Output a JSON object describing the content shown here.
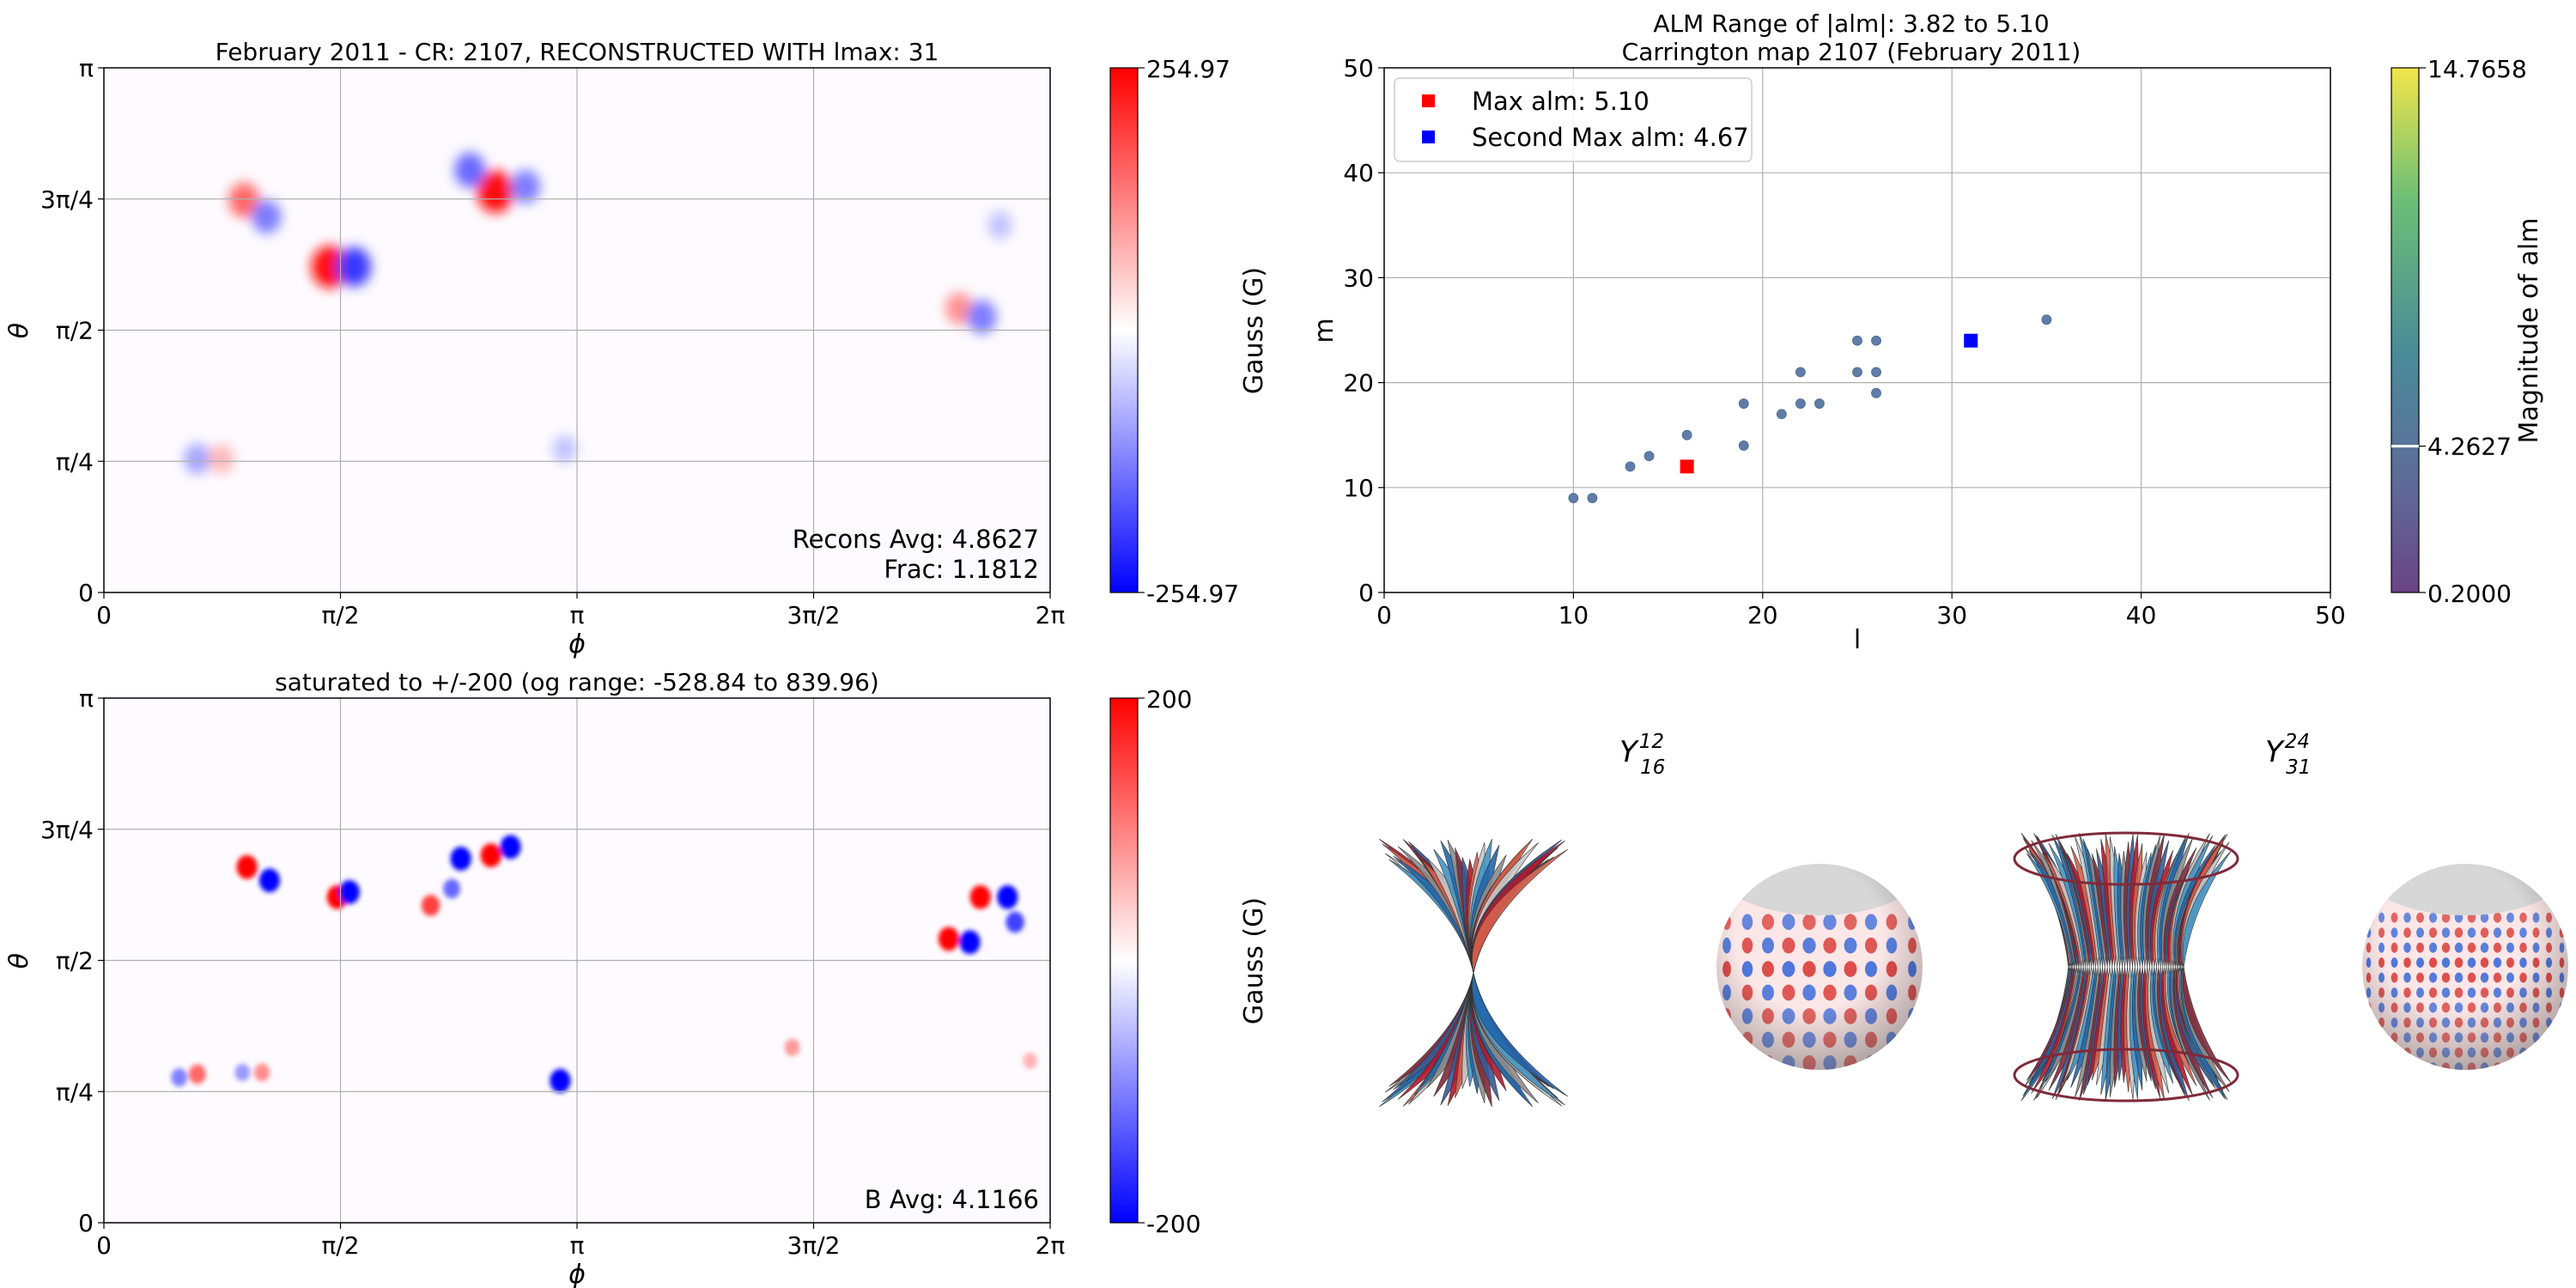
{
  "colors": {
    "red": "#ff0000",
    "blue": "#0000ff",
    "scatter_point": "#5f7da8",
    "grid": "#b0b0b0"
  },
  "chart_data": [
    {
      "type": "heatmap",
      "title": "February 2011 - CR: 2107, RECONSTRUCTED WITH lmax: 31",
      "xlabel": "ϕ",
      "ylabel": "θ",
      "x_ticks": [
        "0",
        "π/2",
        "π",
        "3π/2",
        "2π"
      ],
      "y_ticks": [
        "0",
        "π/4",
        "π/2",
        "3π/4",
        "π"
      ],
      "xlim": [
        0,
        6.2832
      ],
      "ylim": [
        0,
        3.1416
      ],
      "annotations": [
        "Recons Avg: 4.8627",
        "Frac: 1.1812"
      ],
      "colorbar": {
        "label": "Gauss (G)",
        "min_label": "-254.97",
        "max_label": "254.97",
        "min": -254.97,
        "max": 254.97,
        "colormap": "bwr"
      },
      "features": [
        {
          "phi": 1.5,
          "theta": 1.95,
          "value": 240
        },
        {
          "phi": 1.66,
          "theta": 1.95,
          "value": -200
        },
        {
          "phi": 0.93,
          "theta": 2.35,
          "value": 150
        },
        {
          "phi": 1.08,
          "theta": 2.25,
          "value": -130
        },
        {
          "phi": 0.62,
          "theta": 0.8,
          "value": -90
        },
        {
          "phi": 0.78,
          "theta": 0.8,
          "value": 70
        },
        {
          "phi": 2.6,
          "theta": 2.4,
          "value": 240
        },
        {
          "phi": 2.43,
          "theta": 2.53,
          "value": -150
        },
        {
          "phi": 2.8,
          "theta": 2.43,
          "value": -130
        },
        {
          "phi": 5.68,
          "theta": 1.7,
          "value": 110
        },
        {
          "phi": 5.83,
          "theta": 1.65,
          "value": -130
        },
        {
          "phi": 5.95,
          "theta": 2.2,
          "value": -60
        },
        {
          "phi": 3.06,
          "theta": 0.86,
          "value": -60
        }
      ]
    },
    {
      "type": "scatter",
      "title": "ALM Range of |alm|: 3.82 to 5.10",
      "subtitle": "Carrington map 2107 (February 2011)",
      "xlabel": "l",
      "ylabel": "m",
      "xlim": [
        0,
        50
      ],
      "ylim": [
        0,
        50
      ],
      "x_ticks": [
        0,
        10,
        20,
        30,
        40,
        50
      ],
      "y_ticks": [
        0,
        10,
        20,
        30,
        40,
        50
      ],
      "grid": true,
      "legend_position": "top-left",
      "legend": [
        "Max alm: 5.10",
        "Second Max alm: 4.67"
      ],
      "points": [
        {
          "x": 10,
          "y": 9
        },
        {
          "x": 11,
          "y": 9
        },
        {
          "x": 13,
          "y": 12
        },
        {
          "x": 14,
          "y": 13
        },
        {
          "x": 16,
          "y": 15
        },
        {
          "x": 19,
          "y": 14
        },
        {
          "x": 19,
          "y": 18
        },
        {
          "x": 21,
          "y": 17
        },
        {
          "x": 22,
          "y": 18
        },
        {
          "x": 22,
          "y": 21
        },
        {
          "x": 23,
          "y": 18
        },
        {
          "x": 25,
          "y": 21
        },
        {
          "x": 25,
          "y": 24
        },
        {
          "x": 26,
          "y": 24
        },
        {
          "x": 26,
          "y": 21
        },
        {
          "x": 26,
          "y": 19
        },
        {
          "x": 35,
          "y": 26
        }
      ],
      "highlights": [
        {
          "name": "Max alm: 5.10",
          "x": 16,
          "y": 12,
          "color": "#ff0000"
        },
        {
          "name": "Second Max alm: 4.67",
          "x": 31,
          "y": 24,
          "color": "#0000ff"
        }
      ],
      "colorbar": {
        "label": "Magnitude of alm",
        "min_label": "0.2000",
        "max_label": "14.7658",
        "marker_label": "4.2627",
        "min": 0.2,
        "max": 14.7658,
        "marker": 4.2627,
        "colormap": "viridis"
      }
    },
    {
      "type": "heatmap",
      "title": "saturated to +/-200 (og range: -528.84 to 839.96)",
      "xlabel": "ϕ",
      "ylabel": "θ",
      "x_ticks": [
        "0",
        "π/2",
        "π",
        "3π/2",
        "2π"
      ],
      "y_ticks": [
        "0",
        "π/4",
        "π/2",
        "3π/4",
        "π"
      ],
      "xlim": [
        0,
        6.2832
      ],
      "ylim": [
        0,
        3.1416
      ],
      "annotations": [
        "B Avg: 4.1166"
      ],
      "colorbar": {
        "label": "Gauss (G)",
        "min_label": "-200",
        "max_label": "200",
        "min": -200,
        "max": 200,
        "colormap": "bwr"
      },
      "features": [
        {
          "phi": 1.55,
          "theta": 1.95,
          "value": 200
        },
        {
          "phi": 1.63,
          "theta": 1.98,
          "value": -200
        },
        {
          "phi": 0.95,
          "theta": 2.13,
          "value": 200
        },
        {
          "phi": 1.1,
          "theta": 2.05,
          "value": -200
        },
        {
          "phi": 2.37,
          "theta": 2.18,
          "value": -200
        },
        {
          "phi": 2.57,
          "theta": 2.2,
          "value": 200
        },
        {
          "phi": 2.7,
          "theta": 2.25,
          "value": -200
        },
        {
          "phi": 2.17,
          "theta": 1.9,
          "value": 150
        },
        {
          "phi": 2.31,
          "theta": 2.0,
          "value": -120
        },
        {
          "phi": 3.03,
          "theta": 0.85,
          "value": -200
        },
        {
          "phi": 5.61,
          "theta": 1.7,
          "value": 200
        },
        {
          "phi": 5.75,
          "theta": 1.68,
          "value": -200
        },
        {
          "phi": 5.82,
          "theta": 1.95,
          "value": 200
        },
        {
          "phi": 6.0,
          "theta": 1.95,
          "value": -200
        },
        {
          "phi": 6.05,
          "theta": 1.8,
          "value": -150
        },
        {
          "phi": 0.5,
          "theta": 0.87,
          "value": -100
        },
        {
          "phi": 0.62,
          "theta": 0.89,
          "value": 120
        },
        {
          "phi": 1.05,
          "theta": 0.9,
          "value": 90
        },
        {
          "phi": 0.92,
          "theta": 0.9,
          "value": -80
        },
        {
          "phi": 4.57,
          "theta": 1.05,
          "value": 80
        },
        {
          "phi": 6.15,
          "theta": 0.97,
          "value": 60
        }
      ]
    }
  ],
  "spherical_harmonics": [
    {
      "label_base": "Y",
      "sub": "16",
      "sup": "12"
    },
    {
      "label_base": "Y",
      "sub": "31",
      "sup": "24"
    }
  ]
}
